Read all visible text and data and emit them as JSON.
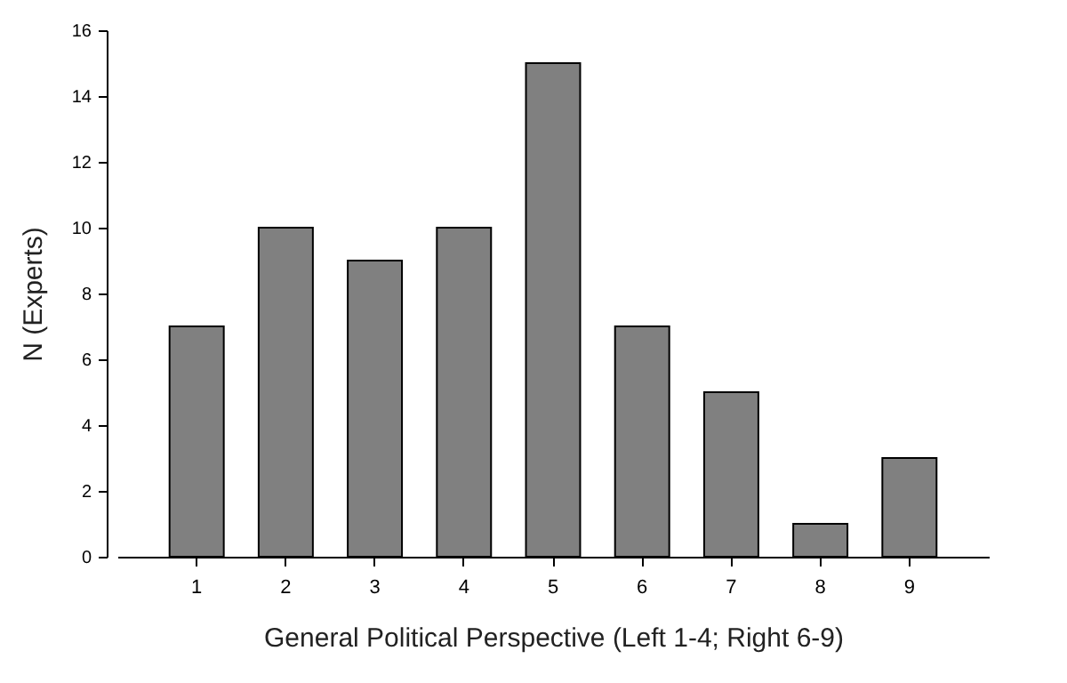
{
  "chart_data": {
    "type": "bar",
    "xlabel": "General Political Perspective (Left 1-4; Right 6-9)",
    "ylabel": "N (Experts)",
    "categories": [
      "1",
      "2",
      "3",
      "4",
      "5",
      "6",
      "7",
      "8",
      "9"
    ],
    "values": [
      7,
      10,
      9,
      10,
      15,
      7,
      5,
      1,
      3
    ],
    "color": "#808080",
    "ylim": [
      0,
      16
    ],
    "yticks": [
      0,
      2,
      4,
      6,
      8,
      10,
      12,
      14,
      16
    ],
    "grid": false
  }
}
